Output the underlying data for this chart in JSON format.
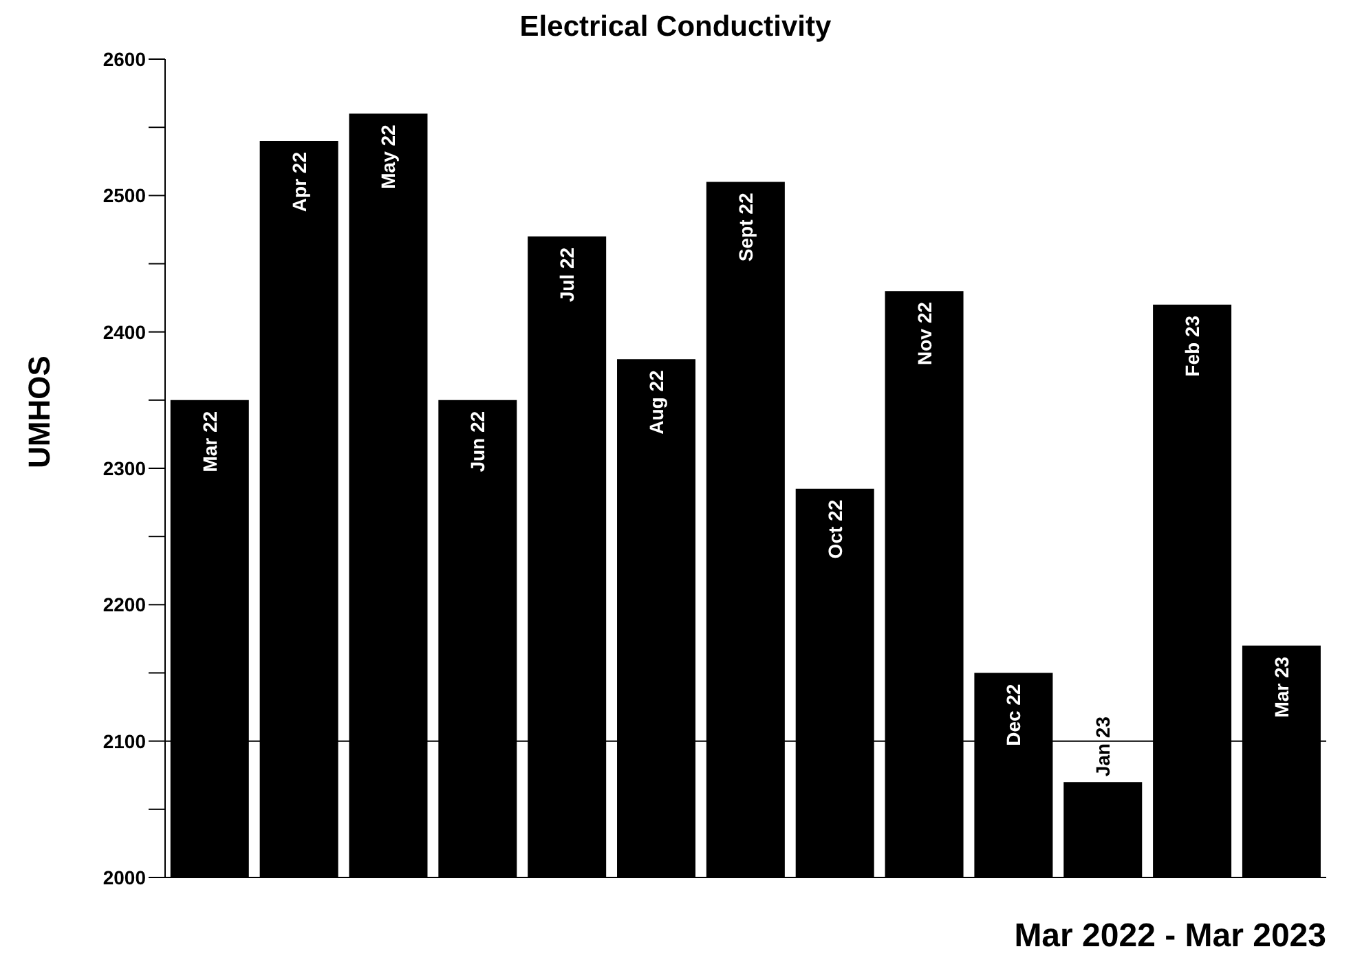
{
  "chart_data": {
    "type": "bar",
    "title": "Electrical Conductivity",
    "xlabel": "Mar 2022 - Mar 2023",
    "ylabel": "UMHOS",
    "categories": [
      "Mar 22",
      "Apr 22",
      "May 22",
      "Jun 22",
      "Jul 22",
      "Aug 22",
      "Sept 22",
      "Oct 22",
      "Nov 22",
      "Dec 22",
      "Jan 23",
      "Feb 23",
      "Mar 23"
    ],
    "values": [
      2350,
      2540,
      2560,
      2350,
      2470,
      2380,
      2510,
      2285,
      2430,
      2150,
      2070,
      2420,
      2170
    ],
    "color": "#000000",
    "ylim": [
      2000,
      2600
    ],
    "yticks": [
      2000,
      {
        "value": 2050,
        "label": null
      },
      2100,
      {
        "value": 2150,
        "label": null
      },
      2200,
      {
        "value": 2250,
        "label": null
      },
      2300,
      {
        "value": 2350,
        "label": null
      },
      2400,
      {
        "value": 2450,
        "label": null
      },
      2500,
      {
        "value": 2550,
        "label": null
      },
      2600
    ],
    "ref_lines": [
      {
        "axis": "y",
        "value": 2100,
        "color": "#000000"
      }
    ],
    "tick_labels": "y",
    "grid": false,
    "legend": false
  }
}
